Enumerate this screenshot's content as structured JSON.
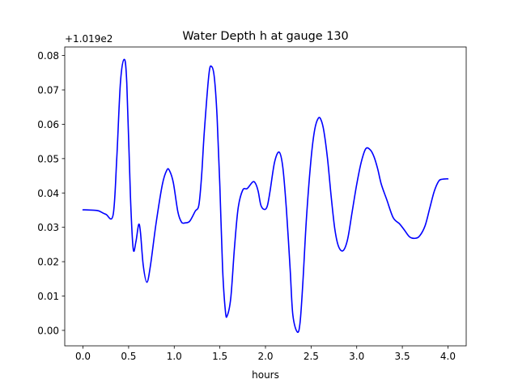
{
  "chart_data": {
    "type": "line",
    "title": "Water Depth h at gauge 130",
    "xlabel": "hours",
    "ylabel": "",
    "offset_label": "+1.019e2",
    "xlim": [
      -0.2,
      4.2
    ],
    "ylim": [
      -0.0045,
      0.0825
    ],
    "xticks": [
      0.0,
      0.5,
      1.0,
      1.5,
      2.0,
      2.5,
      3.0,
      3.5,
      4.0
    ],
    "xtick_labels": [
      "0.0",
      "0.5",
      "1.0",
      "1.5",
      "2.0",
      "2.5",
      "3.0",
      "3.5",
      "4.0"
    ],
    "yticks": [
      0.0,
      0.01,
      0.02,
      0.03,
      0.04,
      0.05,
      0.06,
      0.07,
      0.08
    ],
    "ytick_labels": [
      "0.00",
      "0.01",
      "0.02",
      "0.03",
      "0.04",
      "0.05",
      "0.06",
      "0.07",
      "0.08"
    ],
    "grid": false,
    "series": [
      {
        "color": "#0000ff",
        "x": [
          0.0,
          0.1,
          0.17,
          0.25,
          0.33,
          0.37,
          0.41,
          0.45,
          0.48,
          0.52,
          0.55,
          0.58,
          0.61,
          0.63,
          0.66,
          0.7,
          0.74,
          0.8,
          0.87,
          0.92,
          0.95,
          0.99,
          1.04,
          1.08,
          1.12,
          1.17,
          1.23,
          1.27,
          1.3,
          1.33,
          1.38,
          1.41,
          1.44,
          1.47,
          1.5,
          1.53,
          1.56,
          1.58,
          1.62,
          1.66,
          1.7,
          1.75,
          1.8,
          1.86,
          1.89,
          1.92,
          1.95,
          1.99,
          2.02,
          2.05,
          2.1,
          2.15,
          2.19,
          2.23,
          2.27,
          2.3,
          2.35,
          2.38,
          2.41,
          2.45,
          2.5,
          2.54,
          2.58,
          2.61,
          2.64,
          2.68,
          2.72,
          2.76,
          2.8,
          2.85,
          2.9,
          2.95,
          3.0,
          3.05,
          3.1,
          3.15,
          3.19,
          3.23,
          3.27,
          3.33,
          3.4,
          3.47,
          3.52,
          3.58,
          3.64,
          3.69,
          3.75,
          3.8,
          3.85,
          3.9,
          3.94,
          3.98,
          4.0
        ],
        "y": [
          0.0351,
          0.035,
          0.0348,
          0.0338,
          0.0336,
          0.05,
          0.072,
          0.0789,
          0.072,
          0.039,
          0.0238,
          0.0258,
          0.0308,
          0.0285,
          0.019,
          0.014,
          0.019,
          0.031,
          0.0425,
          0.0467,
          0.0464,
          0.043,
          0.0345,
          0.0315,
          0.0313,
          0.0318,
          0.0347,
          0.0365,
          0.045,
          0.058,
          0.0745,
          0.0768,
          0.0735,
          0.062,
          0.042,
          0.018,
          0.0058,
          0.0042,
          0.0095,
          0.024,
          0.0355,
          0.0408,
          0.0413,
          0.0432,
          0.0428,
          0.0405,
          0.0364,
          0.0352,
          0.0362,
          0.0405,
          0.049,
          0.0519,
          0.0475,
          0.035,
          0.018,
          0.0045,
          -0.0005,
          0.0025,
          0.014,
          0.033,
          0.05,
          0.0585,
          0.0618,
          0.0612,
          0.058,
          0.05,
          0.039,
          0.0295,
          0.0245,
          0.0232,
          0.0265,
          0.0345,
          0.0425,
          0.049,
          0.0529,
          0.0525,
          0.0505,
          0.047,
          0.0425,
          0.038,
          0.0328,
          0.031,
          0.0293,
          0.0272,
          0.0268,
          0.0275,
          0.0305,
          0.0355,
          0.0405,
          0.0435,
          0.044,
          0.0441,
          0.0441
        ]
      }
    ]
  }
}
